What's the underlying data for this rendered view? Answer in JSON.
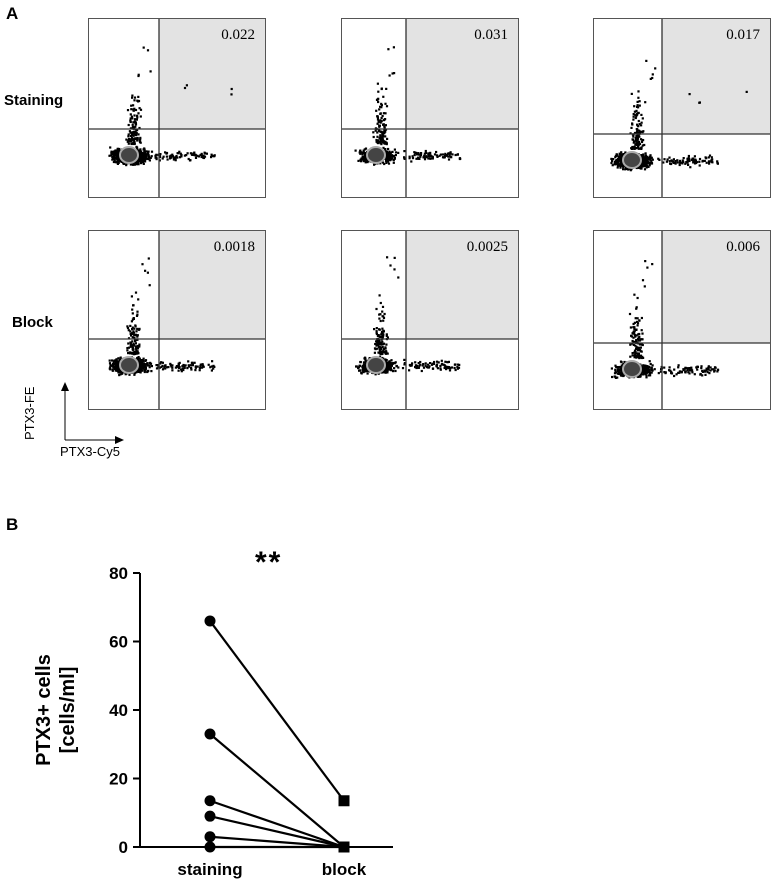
{
  "panel_a": {
    "letter": "A",
    "row_labels": [
      "Staining",
      "Block"
    ],
    "plots": [
      {
        "value": "0.022",
        "row": 0,
        "col": 0
      },
      {
        "value": "0.031",
        "row": 0,
        "col": 1
      },
      {
        "value": "0.017",
        "row": 0,
        "col": 2
      },
      {
        "value": "0.0018",
        "row": 1,
        "col": 0
      },
      {
        "value": "0.0025",
        "row": 1,
        "col": 1
      },
      {
        "value": "0.006",
        "row": 1,
        "col": 2
      }
    ],
    "y_axis_label": "PTX3-FE",
    "x_axis_label": "PTX3-Cy5"
  },
  "panel_b": {
    "letter": "B",
    "significance": "**"
  },
  "chart_data": {
    "type": "scatter",
    "title": "",
    "xlabel": "",
    "ylabel": "PTX3+ cells [cells/ml]",
    "ylabel_lines": [
      "PTX3+ cells",
      "[cells/ml]"
    ],
    "categories": [
      "staining",
      "block"
    ],
    "ylim": [
      0,
      80
    ],
    "yticks": [
      0,
      20,
      40,
      60,
      80
    ],
    "paired_lines": [
      {
        "staining": 66,
        "block": 13.5
      },
      {
        "staining": 33,
        "block": 0
      },
      {
        "staining": 13.5,
        "block": 0
      },
      {
        "staining": 9,
        "block": 0
      },
      {
        "staining": 3,
        "block": 0
      },
      {
        "staining": 0,
        "block": 0
      }
    ],
    "markers": {
      "staining": "circle",
      "block": "square"
    }
  }
}
